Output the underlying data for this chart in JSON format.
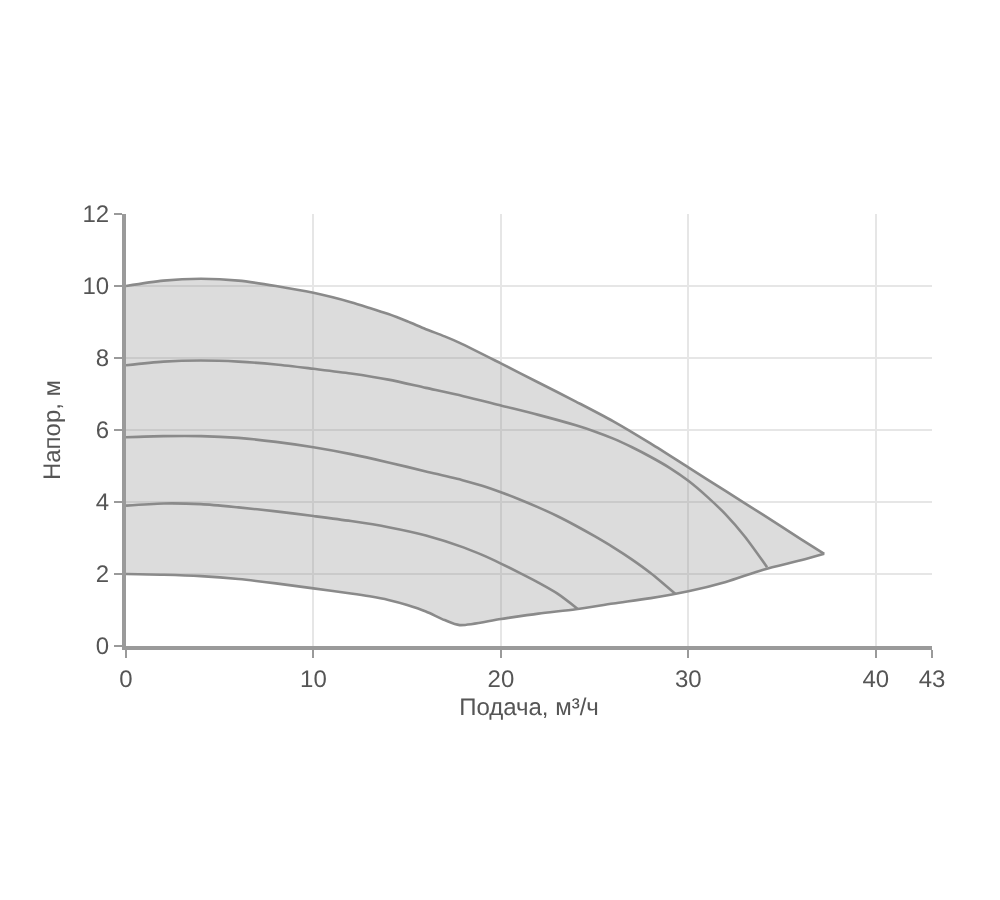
{
  "chart_data": {
    "type": "line",
    "xlabel": "Подача, м³/ч",
    "ylabel": "Напор, м",
    "xlim": [
      0,
      43
    ],
    "xticks": [
      0,
      10,
      20,
      30,
      40,
      43
    ],
    "ylim": [
      0,
      12
    ],
    "yticks": [
      0,
      2,
      4,
      6,
      8,
      10,
      12
    ],
    "grid": true,
    "series": [
      {
        "color": "#8a8a8a",
        "x": [
          0,
          2,
          4,
          6,
          8,
          10,
          12,
          13,
          14,
          15,
          16,
          17,
          17.8,
          20,
          22,
          24,
          26,
          28,
          30,
          32,
          34,
          36,
          37.25
        ],
        "values": [
          10.0,
          10.15,
          10.2,
          10.15,
          10.0,
          9.81,
          9.55,
          9.39,
          9.22,
          9.02,
          8.8,
          8.6,
          8.42,
          7.85,
          7.32,
          6.79,
          6.24,
          5.62,
          4.96,
          4.3,
          3.64,
          2.97,
          2.56
        ],
        "upper": [
          10.0,
          10.15,
          10.2,
          10.15,
          10.0,
          9.81,
          9.55,
          9.39,
          9.22,
          9.02,
          8.8,
          8.6,
          8.42,
          7.85,
          7.32,
          6.79,
          6.24,
          5.62,
          4.96,
          4.3,
          3.64,
          2.97,
          2.56
        ],
        "lower": [
          2.0,
          1.98,
          1.94,
          1.86,
          1.74,
          1.6,
          1.46,
          1.38,
          1.28,
          1.14,
          0.96,
          0.72,
          0.58,
          0.75,
          0.9,
          1.02,
          1.18,
          1.33,
          1.52,
          1.78,
          2.12,
          2.38,
          2.56
        ]
      },
      {
        "color": "#8a8a8a",
        "x": [
          0,
          2,
          4,
          6,
          8,
          10,
          12,
          14,
          16,
          18,
          20,
          22,
          24,
          25,
          26,
          27,
          28,
          29,
          30,
          31,
          32,
          33,
          34.2
        ],
        "values": [
          7.8,
          7.9,
          7.93,
          7.9,
          7.82,
          7.7,
          7.57,
          7.4,
          7.17,
          6.94,
          6.68,
          6.42,
          6.13,
          5.96,
          5.76,
          5.52,
          5.25,
          4.95,
          4.59,
          4.15,
          3.65,
          3.05,
          2.19
        ]
      },
      {
        "color": "#8a8a8a",
        "x": [
          0,
          2,
          4,
          6,
          8,
          10,
          12,
          14,
          16,
          18,
          19,
          20,
          21,
          22,
          23,
          24,
          25,
          26,
          27,
          28,
          29.3
        ],
        "values": [
          5.8,
          5.83,
          5.83,
          5.78,
          5.67,
          5.52,
          5.33,
          5.1,
          4.85,
          4.6,
          4.45,
          4.27,
          4.07,
          3.85,
          3.61,
          3.34,
          3.05,
          2.74,
          2.4,
          2.02,
          1.45
        ]
      },
      {
        "color": "#8a8a8a",
        "x": [
          0,
          2,
          4,
          6,
          8,
          10,
          12,
          14,
          16,
          18,
          19,
          20,
          21,
          22,
          23,
          24.1
        ],
        "values": [
          3.9,
          3.96,
          3.94,
          3.85,
          3.74,
          3.61,
          3.47,
          3.3,
          3.07,
          2.74,
          2.53,
          2.29,
          2.03,
          1.76,
          1.46,
          1.03
        ]
      },
      {
        "color": "#8a8a8a",
        "x": [
          0,
          2,
          4,
          6,
          8,
          10,
          12,
          13,
          14,
          15,
          16,
          17,
          17.8,
          20,
          22,
          24,
          26,
          28,
          30,
          32,
          34,
          36,
          37.25
        ],
        "values": [
          2.0,
          1.98,
          1.94,
          1.86,
          1.74,
          1.6,
          1.46,
          1.38,
          1.28,
          1.14,
          0.96,
          0.72,
          0.58,
          0.75,
          0.9,
          1.02,
          1.18,
          1.33,
          1.52,
          1.78,
          2.12,
          2.38,
          2.56
        ]
      }
    ]
  }
}
